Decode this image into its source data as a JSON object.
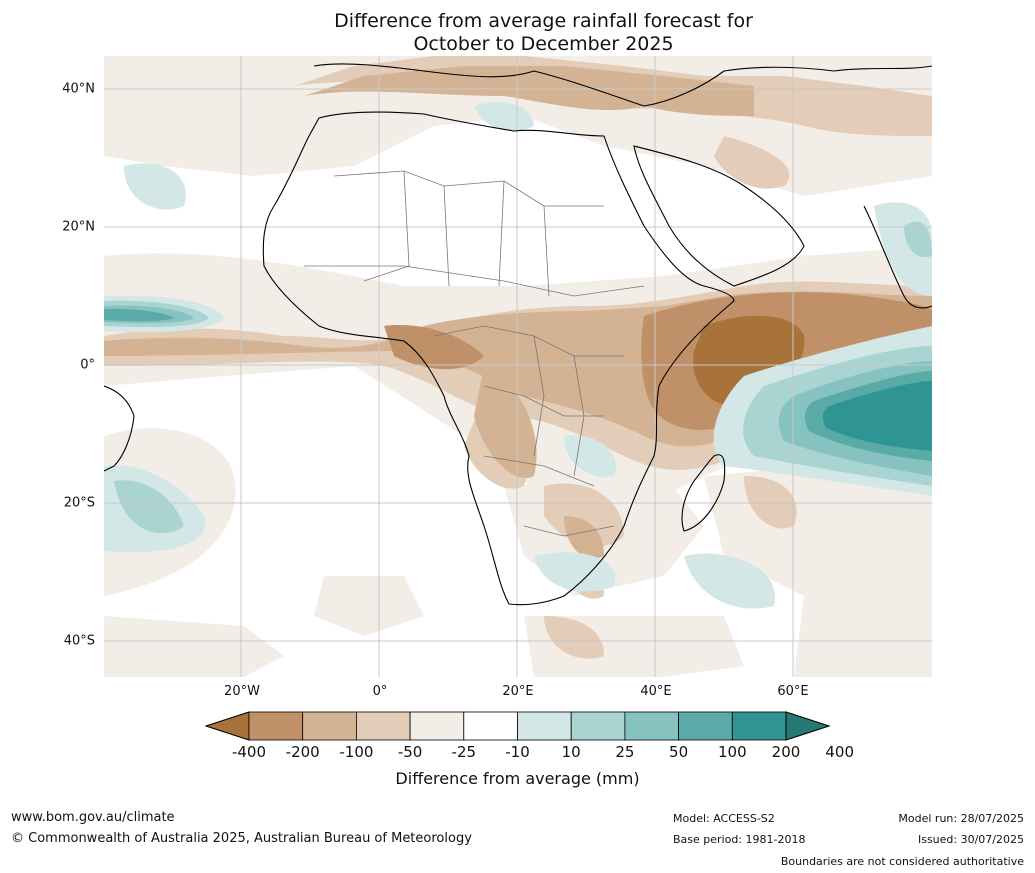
{
  "title": {
    "line1": "Difference from average rainfall forecast for",
    "line2": "October to December 2025"
  },
  "map": {
    "lat_labels": [
      "40°N",
      "20°N",
      "0°",
      "20°S",
      "40°S"
    ],
    "lon_labels": [
      "20°W",
      "0°",
      "20°E",
      "40°E",
      "60°E"
    ],
    "region": "Africa and surrounding oceans",
    "extent_degrees": {
      "lon_min": -40,
      "lon_max": 80,
      "lat_min": -45,
      "lat_max": 45
    }
  },
  "legend": {
    "ticks": [
      "-400",
      "-200",
      "-100",
      "-50",
      "-25",
      "-10",
      "10",
      "25",
      "50",
      "100",
      "200",
      "400"
    ],
    "colors": [
      "#a8733a",
      "#c09168",
      "#d4b394",
      "#e3cdb9",
      "#f2ede6",
      "#ffffff",
      "#d3e8e6",
      "#aad4d2",
      "#86c2c0",
      "#5aaaa8",
      "#2f9593",
      "#267875"
    ],
    "label": "Difference from average (mm)"
  },
  "footer": {
    "website": "www.bom.gov.au/climate",
    "copyright": "© Commonwealth of Australia 2025, Australian Bureau of Meteorology",
    "model": "Model: ACCESS-S2",
    "base_period": "Base period: 1981-2018",
    "model_run": "Model run: 28/07/2025",
    "issued": "Issued: 30/07/2025",
    "disclaimer": "Boundaries are not considered authoritative"
  }
}
